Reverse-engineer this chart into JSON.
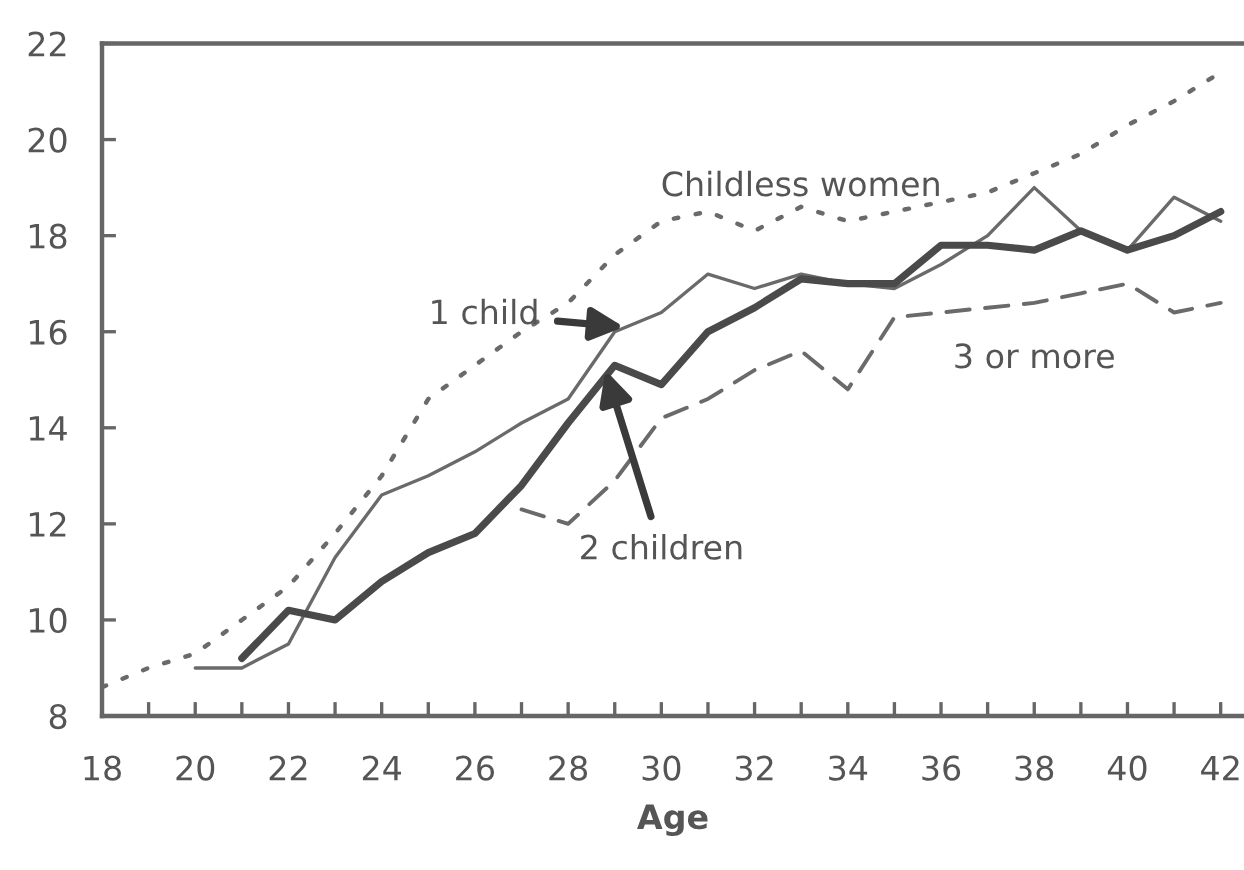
{
  "chart_data": {
    "type": "line",
    "xlabel": "Age",
    "xlim": [
      18,
      42.5
    ],
    "ylim": [
      8,
      22
    ],
    "xticks": [
      18,
      {
        "value": 19,
        "label": null
      },
      20,
      {
        "value": 21,
        "label": null
      },
      22,
      {
        "value": 23,
        "label": null
      },
      24,
      {
        "value": 25,
        "label": null
      },
      26,
      {
        "value": 27,
        "label": null
      },
      28,
      {
        "value": 29,
        "label": null
      },
      30,
      {
        "value": 31,
        "label": null
      },
      32,
      {
        "value": 33,
        "label": null
      },
      34,
      {
        "value": 35,
        "label": null
      },
      36,
      {
        "value": 37,
        "label": null
      },
      38,
      {
        "value": 39,
        "label": null
      },
      40,
      {
        "value": 41,
        "label": null
      },
      42
    ],
    "yticks": [
      8,
      10,
      12,
      14,
      16,
      18,
      20,
      22
    ],
    "grid": false,
    "legend": false,
    "marker": "none",
    "series": [
      {
        "color": "#6a6a6a",
        "line_style": "dotted",
        "x": [
          18,
          19,
          20,
          21,
          22,
          23,
          24,
          25,
          26,
          27,
          28,
          29,
          30,
          31,
          32,
          33,
          34,
          35,
          36,
          37,
          38,
          39,
          40,
          41,
          42
        ],
        "values": [
          8.6,
          9.0,
          9.3,
          10.0,
          10.7,
          11.8,
          13.0,
          14.6,
          15.3,
          16.0,
          16.6,
          17.6,
          18.3,
          18.5,
          18.1,
          18.6,
          18.3,
          18.5,
          18.7,
          18.9,
          19.3,
          19.7,
          20.3,
          20.8,
          21.4
        ]
      },
      {
        "color": "#6a6a6a",
        "line_style": "solid",
        "x": [
          20,
          21,
          22,
          23,
          24,
          25,
          26,
          27,
          28,
          29,
          30,
          31,
          32,
          33,
          34,
          35,
          36,
          37,
          38,
          39,
          40,
          41,
          42
        ],
        "values": [
          9.0,
          9.0,
          9.5,
          11.3,
          12.6,
          13.0,
          13.5,
          14.1,
          14.6,
          16.0,
          16.4,
          17.2,
          16.9,
          17.2,
          17.0,
          16.9,
          17.4,
          18.0,
          19.0,
          18.1,
          17.7,
          18.8,
          18.3
        ]
      },
      {
        "color": "#4a4a4a",
        "line_style": "solid",
        "x": [
          21,
          22,
          23,
          24,
          25,
          26,
          27,
          28,
          29,
          30,
          31,
          32,
          33,
          34,
          35,
          36,
          37,
          38,
          39,
          40,
          41,
          42
        ],
        "values": [
          9.2,
          10.2,
          10.0,
          10.8,
          11.4,
          11.8,
          12.8,
          14.1,
          15.3,
          14.9,
          16.0,
          16.5,
          17.1,
          17.0,
          17.0,
          17.8,
          17.8,
          17.7,
          18.1,
          17.7,
          18.0,
          18.5
        ]
      },
      {
        "color": "#6a6a6a",
        "line_style": "dashed",
        "x": [
          27,
          28,
          29,
          30,
          31,
          32,
          33,
          34,
          35,
          36,
          37,
          38,
          39,
          40,
          41,
          42
        ],
        "values": [
          12.3,
          12.0,
          12.9,
          14.2,
          14.6,
          15.2,
          15.6,
          14.8,
          16.3,
          16.4,
          16.5,
          16.6,
          16.8,
          17.0,
          16.4,
          16.6
        ]
      }
    ],
    "annotations": [
      {
        "text": "Childless women",
        "x": 33,
        "y": 18.6
      },
      {
        "text": "1 child",
        "x": 29.2,
        "y": 16.1
      },
      {
        "text": "2 children",
        "x": 28.8,
        "y": 15.2
      },
      {
        "text": "3 or more",
        "x": 38,
        "y": 16.6
      }
    ]
  }
}
